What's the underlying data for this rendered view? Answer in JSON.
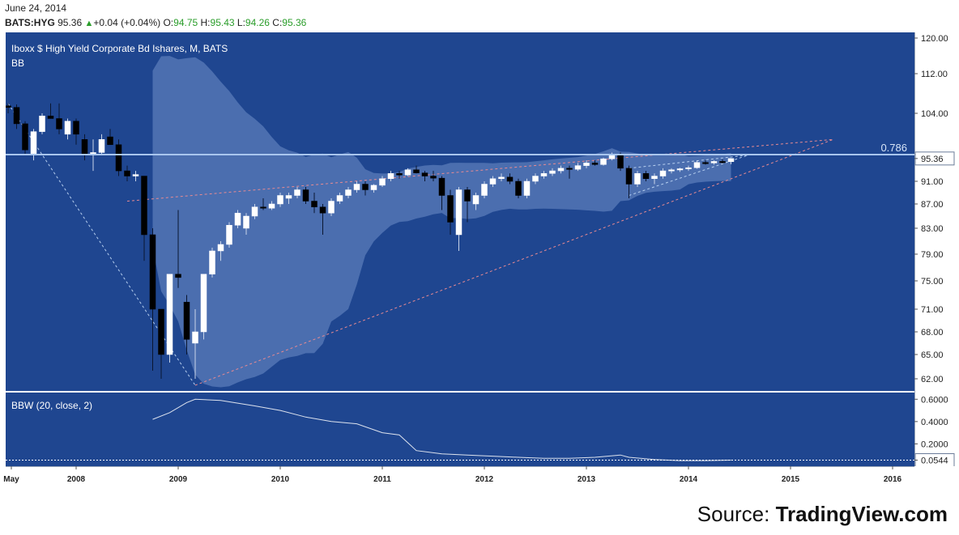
{
  "header": {
    "date": "June 24, 2014",
    "symbol": "BATS:HYG",
    "last": "95.36",
    "change": "+0.04 (+0.04%)",
    "o_label": "O:",
    "o": "94.75",
    "h_label": "H:",
    "h": "95.43",
    "l_label": "L:",
    "l": "94.26",
    "c_label": "C:",
    "c": "95.36"
  },
  "source": {
    "prefix": "Source: ",
    "brand": "TradingView.com"
  },
  "colors": {
    "background": "#1f4690",
    "band": "#6f8fc8",
    "candle_up": "#ffffff",
    "candle_down": "#000000",
    "trend_pink": "#e88a92",
    "trend_blue": "#b8d0f0",
    "fib_line": "#a9c6ee",
    "axis_bg": "#ffffff"
  },
  "chart_data": [
    {
      "type": "candlestick",
      "title": "Iboxx $ High Yield Corporate Bd Ishares, M, BATS",
      "indicator_label": "BB",
      "ylim": [
        60,
        121
      ],
      "y_ticks": [
        "120.00",
        "112.00",
        "104.00",
        "95.36",
        "91.00",
        "87.00",
        "83.00",
        "79.00",
        "75.00",
        "71.00",
        "68.00",
        "65.00",
        "62.00"
      ],
      "last_price": "95.36",
      "fib_level": {
        "label": "0.786",
        "value": 96.1
      },
      "x_labels": [
        "May",
        "2008",
        "2009",
        "2010",
        "2011",
        "2012",
        "2013",
        "2014",
        "2015",
        "2016"
      ],
      "candles": [
        {
          "date": "2007-05",
          "o": 105.5,
          "h": 106,
          "l": 104,
          "c": 105.2
        },
        {
          "date": "2007-06",
          "o": 105.2,
          "h": 105.8,
          "l": 101,
          "c": 102
        },
        {
          "date": "2007-07",
          "o": 102,
          "h": 102.5,
          "l": 96,
          "c": 97
        },
        {
          "date": "2007-08",
          "o": 96,
          "h": 101,
          "l": 95,
          "c": 100.5
        },
        {
          "date": "2007-09",
          "o": 100.5,
          "h": 104,
          "l": 100,
          "c": 103.5
        },
        {
          "date": "2007-10",
          "o": 103.5,
          "h": 106,
          "l": 103,
          "c": 103
        },
        {
          "date": "2007-11",
          "o": 103,
          "h": 106,
          "l": 100,
          "c": 101
        },
        {
          "date": "2007-12",
          "o": 100,
          "h": 103,
          "l": 99,
          "c": 102.5
        },
        {
          "date": "2008-01",
          "o": 102.5,
          "h": 103,
          "l": 98,
          "c": 100
        },
        {
          "date": "2008-02",
          "o": 99,
          "h": 100,
          "l": 95,
          "c": 96
        },
        {
          "date": "2008-03",
          "o": 96,
          "h": 99,
          "l": 93,
          "c": 96.5
        },
        {
          "date": "2008-04",
          "o": 96.5,
          "h": 100,
          "l": 96,
          "c": 99
        },
        {
          "date": "2008-05",
          "o": 99.5,
          "h": 101,
          "l": 98,
          "c": 98
        },
        {
          "date": "2008-06",
          "o": 98,
          "h": 99,
          "l": 92,
          "c": 93
        },
        {
          "date": "2008-07",
          "o": 93,
          "h": 94,
          "l": 91,
          "c": 92
        },
        {
          "date": "2008-08",
          "o": 92,
          "h": 93,
          "l": 91,
          "c": 92.3
        },
        {
          "date": "2008-09",
          "o": 92,
          "h": 92,
          "l": 78,
          "c": 82
        },
        {
          "date": "2008-10",
          "o": 82,
          "h": 83,
          "l": 63,
          "c": 71
        },
        {
          "date": "2008-11",
          "o": 71,
          "h": 71,
          "l": 62,
          "c": 65
        },
        {
          "date": "2008-12",
          "o": 65,
          "h": 76,
          "l": 64,
          "c": 76
        },
        {
          "date": "2009-01",
          "o": 76,
          "h": 86,
          "l": 74,
          "c": 75.5
        },
        {
          "date": "2009-02",
          "o": 72,
          "h": 73,
          "l": 65,
          "c": 67
        },
        {
          "date": "2009-03",
          "o": 66.5,
          "h": 71,
          "l": 62,
          "c": 68
        },
        {
          "date": "2009-04",
          "o": 68,
          "h": 76,
          "l": 67,
          "c": 76
        },
        {
          "date": "2009-05",
          "o": 76,
          "h": 80,
          "l": 75.5,
          "c": 79.5
        },
        {
          "date": "2009-06",
          "o": 79.5,
          "h": 81,
          "l": 78,
          "c": 80.5
        },
        {
          "date": "2009-07",
          "o": 80.5,
          "h": 84,
          "l": 80,
          "c": 83.5
        },
        {
          "date": "2009-08",
          "o": 83.5,
          "h": 86,
          "l": 83,
          "c": 85.5
        },
        {
          "date": "2009-09",
          "o": 83,
          "h": 85.5,
          "l": 82,
          "c": 85
        },
        {
          "date": "2009-10",
          "o": 85,
          "h": 87,
          "l": 84.5,
          "c": 86.5
        },
        {
          "date": "2009-11",
          "o": 86.5,
          "h": 88,
          "l": 86,
          "c": 86.3
        },
        {
          "date": "2009-12",
          "o": 86.3,
          "h": 87.5,
          "l": 86,
          "c": 87
        },
        {
          "date": "2010-01",
          "o": 87,
          "h": 89,
          "l": 86.5,
          "c": 88.5
        },
        {
          "date": "2010-02",
          "o": 88,
          "h": 89,
          "l": 87,
          "c": 88.5
        },
        {
          "date": "2010-03",
          "o": 88.5,
          "h": 90,
          "l": 88,
          "c": 89.5
        },
        {
          "date": "2010-04",
          "o": 89.5,
          "h": 90,
          "l": 87,
          "c": 87.5
        },
        {
          "date": "2010-05",
          "o": 87.5,
          "h": 89,
          "l": 85.5,
          "c": 86.5
        },
        {
          "date": "2010-06",
          "o": 86.5,
          "h": 87,
          "l": 82,
          "c": 85.5
        },
        {
          "date": "2010-07",
          "o": 85.5,
          "h": 88,
          "l": 85,
          "c": 87.5
        },
        {
          "date": "2010-08",
          "o": 87.5,
          "h": 89,
          "l": 87,
          "c": 88.5
        },
        {
          "date": "2010-09",
          "o": 88.5,
          "h": 90,
          "l": 88,
          "c": 89.5
        },
        {
          "date": "2010-10",
          "o": 89.5,
          "h": 91,
          "l": 89,
          "c": 90.5
        },
        {
          "date": "2010-11",
          "o": 90.5,
          "h": 91,
          "l": 88.5,
          "c": 89.5
        },
        {
          "date": "2010-12",
          "o": 89.5,
          "h": 90.5,
          "l": 89,
          "c": 90.3
        },
        {
          "date": "2011-01",
          "o": 90.3,
          "h": 92,
          "l": 90,
          "c": 91.5
        },
        {
          "date": "2011-02",
          "o": 91.5,
          "h": 93,
          "l": 91,
          "c": 92.5
        },
        {
          "date": "2011-03",
          "o": 92.5,
          "h": 93,
          "l": 91.5,
          "c": 92.2
        },
        {
          "date": "2011-04",
          "o": 92.2,
          "h": 93.5,
          "l": 92,
          "c": 93.2
        },
        {
          "date": "2011-05",
          "o": 93.2,
          "h": 94,
          "l": 92.5,
          "c": 92.6
        },
        {
          "date": "2011-06",
          "o": 92.6,
          "h": 93,
          "l": 91,
          "c": 92
        },
        {
          "date": "2011-07",
          "o": 92,
          "h": 93,
          "l": 91,
          "c": 91.6
        },
        {
          "date": "2011-08",
          "o": 91.6,
          "h": 92,
          "l": 86,
          "c": 88.5
        },
        {
          "date": "2011-09",
          "o": 88.5,
          "h": 89.5,
          "l": 82,
          "c": 84
        },
        {
          "date": "2011-10",
          "o": 82,
          "h": 90,
          "l": 79.5,
          "c": 89.5
        },
        {
          "date": "2011-11",
          "o": 89.5,
          "h": 90,
          "l": 84,
          "c": 87.5
        },
        {
          "date": "2011-12",
          "o": 87,
          "h": 89,
          "l": 86,
          "c": 88.5
        },
        {
          "date": "2012-01",
          "o": 88.5,
          "h": 91,
          "l": 88,
          "c": 90.5
        },
        {
          "date": "2012-02",
          "o": 90.5,
          "h": 92,
          "l": 90,
          "c": 91.5
        },
        {
          "date": "2012-03",
          "o": 91.5,
          "h": 92.5,
          "l": 91,
          "c": 91.8
        },
        {
          "date": "2012-04",
          "o": 91.8,
          "h": 92.5,
          "l": 90.5,
          "c": 91
        },
        {
          "date": "2012-05",
          "o": 91,
          "h": 91.5,
          "l": 88,
          "c": 88.5
        },
        {
          "date": "2012-06",
          "o": 88.5,
          "h": 91.5,
          "l": 88,
          "c": 91
        },
        {
          "date": "2012-07",
          "o": 91,
          "h": 92.5,
          "l": 90.5,
          "c": 92
        },
        {
          "date": "2012-08",
          "o": 92,
          "h": 93,
          "l": 91.5,
          "c": 92.5
        },
        {
          "date": "2012-09",
          "o": 92.5,
          "h": 93.5,
          "l": 92,
          "c": 93
        },
        {
          "date": "2012-10",
          "o": 93,
          "h": 94,
          "l": 92.5,
          "c": 93.5
        },
        {
          "date": "2012-11",
          "o": 93.5,
          "h": 94,
          "l": 91.5,
          "c": 93.3
        },
        {
          "date": "2012-12",
          "o": 93.3,
          "h": 94.5,
          "l": 93,
          "c": 94
        },
        {
          "date": "2013-01",
          "o": 94,
          "h": 95,
          "l": 93.5,
          "c": 94.5
        },
        {
          "date": "2013-02",
          "o": 94.5,
          "h": 95,
          "l": 94,
          "c": 94.2
        },
        {
          "date": "2013-03",
          "o": 94.2,
          "h": 95.5,
          "l": 94,
          "c": 95.3
        },
        {
          "date": "2013-04",
          "o": 95.3,
          "h": 96.5,
          "l": 95,
          "c": 96
        },
        {
          "date": "2013-05",
          "o": 96,
          "h": 96.5,
          "l": 93,
          "c": 93.5
        },
        {
          "date": "2013-06",
          "o": 93.5,
          "h": 94,
          "l": 88,
          "c": 90.5
        },
        {
          "date": "2013-07",
          "o": 90.5,
          "h": 93,
          "l": 90,
          "c": 92.5
        },
        {
          "date": "2013-08",
          "o": 92.5,
          "h": 93,
          "l": 91,
          "c": 91.5
        },
        {
          "date": "2013-09",
          "o": 91.5,
          "h": 92.5,
          "l": 90.5,
          "c": 92
        },
        {
          "date": "2013-10",
          "o": 92,
          "h": 93.5,
          "l": 91.5,
          "c": 93
        },
        {
          "date": "2013-11",
          "o": 93,
          "h": 93.5,
          "l": 92.5,
          "c": 93.2
        },
        {
          "date": "2013-12",
          "o": 93.2,
          "h": 93.6,
          "l": 92.8,
          "c": 93.4
        },
        {
          "date": "2014-01",
          "o": 93.4,
          "h": 94,
          "l": 93,
          "c": 93.6
        },
        {
          "date": "2014-02",
          "o": 93.6,
          "h": 95,
          "l": 93.4,
          "c": 94.6
        },
        {
          "date": "2014-03",
          "o": 94.6,
          "h": 95,
          "l": 94.2,
          "c": 94.5
        },
        {
          "date": "2014-04",
          "o": 94.5,
          "h": 95,
          "l": 94.2,
          "c": 94.8
        },
        {
          "date": "2014-05",
          "o": 94.8,
          "h": 95.2,
          "l": 94.4,
          "c": 94.7
        },
        {
          "date": "2014-06",
          "o": 94.75,
          "h": 95.43,
          "l": 94.26,
          "c": 95.36
        }
      ]
    },
    {
      "type": "line",
      "title": "BBW (20, close, 2)",
      "ylim": [
        0,
        0.66
      ],
      "y_ticks": [
        "0.6000",
        "0.4000",
        "0.2000",
        "0.0544"
      ],
      "last_value": "0.0544",
      "points": [
        [
          "2008-10",
          0.42
        ],
        [
          "2008-12",
          0.48
        ],
        [
          "2009-02",
          0.57
        ],
        [
          "2009-03",
          0.6
        ],
        [
          "2009-06",
          0.59
        ],
        [
          "2009-10",
          0.54
        ],
        [
          "2010-01",
          0.5
        ],
        [
          "2010-04",
          0.44
        ],
        [
          "2010-07",
          0.4
        ],
        [
          "2010-10",
          0.38
        ],
        [
          "2011-01",
          0.3
        ],
        [
          "2011-03",
          0.28
        ],
        [
          "2011-05",
          0.14
        ],
        [
          "2011-08",
          0.11
        ],
        [
          "2011-11",
          0.1
        ],
        [
          "2012-02",
          0.09
        ],
        [
          "2012-05",
          0.08
        ],
        [
          "2012-08",
          0.07
        ],
        [
          "2012-11",
          0.07
        ],
        [
          "2013-02",
          0.08
        ],
        [
          "2013-05",
          0.1
        ],
        [
          "2013-06",
          0.08
        ],
        [
          "2013-09",
          0.06
        ],
        [
          "2013-12",
          0.05
        ],
        [
          "2014-03",
          0.05
        ],
        [
          "2014-06",
          0.0544
        ]
      ]
    }
  ]
}
